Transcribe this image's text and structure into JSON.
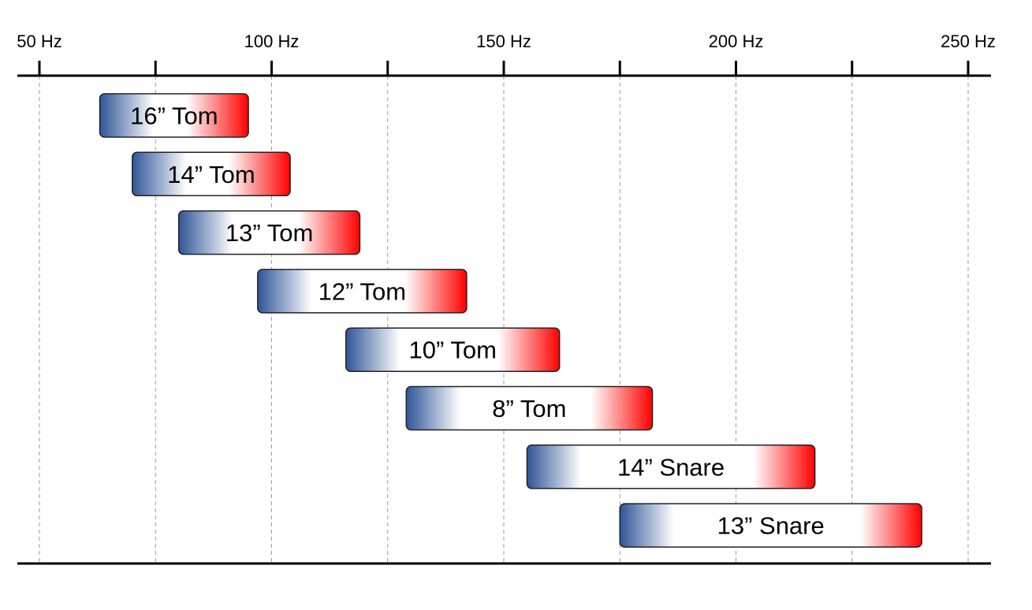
{
  "chart_data": {
    "type": "bar",
    "orientation": "horizontal-range",
    "x_unit": "Hz",
    "xlim": [
      50,
      250
    ],
    "x_ticks": [
      50,
      75,
      100,
      125,
      150,
      175,
      200,
      225,
      250
    ],
    "x_tick_labels": [
      {
        "value": 50,
        "label": "50 Hz"
      },
      {
        "value": 100,
        "label": "100 Hz"
      },
      {
        "value": 150,
        "label": "150 Hz"
      },
      {
        "value": 200,
        "label": "200 Hz"
      },
      {
        "value": 250,
        "label": "250 Hz"
      }
    ],
    "grid": true,
    "gradient_colors": {
      "low": "#2f5597",
      "high": "#ff0000",
      "mid": "#ffffff"
    },
    "bars": [
      {
        "label": "16” Tom",
        "start": 63,
        "end": 95
      },
      {
        "label": "14” Tom",
        "start": 70,
        "end": 104
      },
      {
        "label": "13” Tom",
        "start": 80,
        "end": 119
      },
      {
        "label": "12” Tom",
        "start": 97,
        "end": 142
      },
      {
        "label": "10” Tom",
        "start": 116,
        "end": 162
      },
      {
        "label": "8” Tom",
        "start": 129,
        "end": 182
      },
      {
        "label": "14” Snare",
        "start": 155,
        "end": 217
      },
      {
        "label": "13” Snare",
        "start": 175,
        "end": 240
      }
    ]
  }
}
